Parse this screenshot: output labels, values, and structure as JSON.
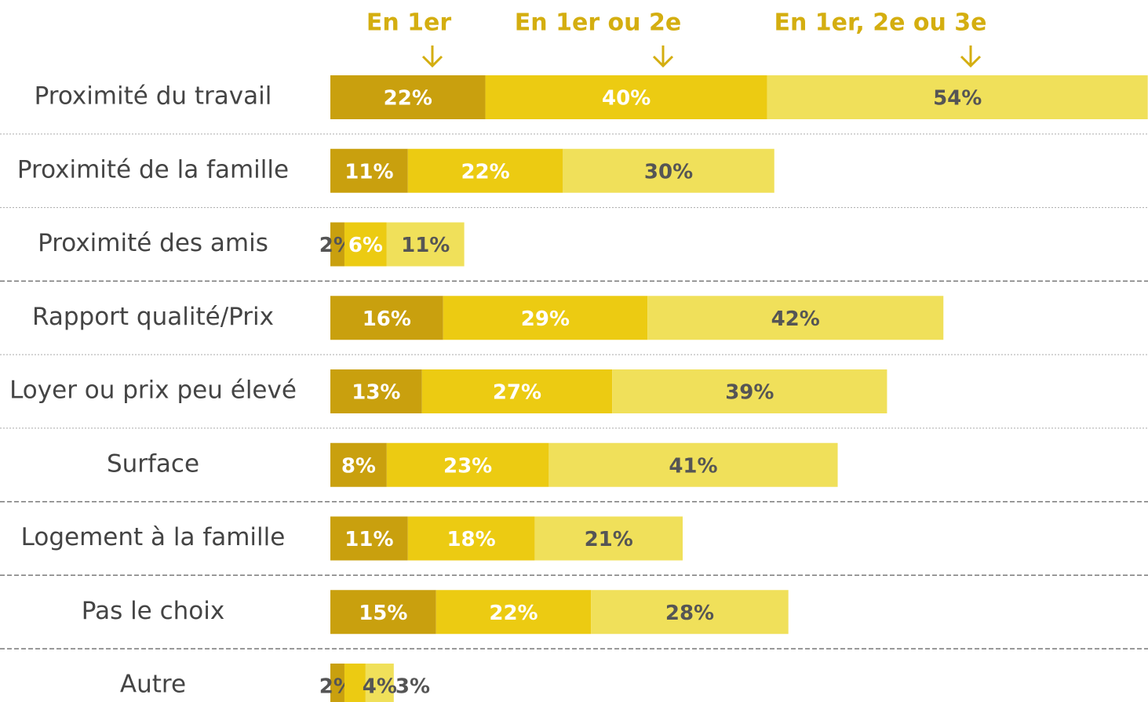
{
  "chart_data": {
    "type": "bar",
    "orientation": "horizontal",
    "stacked": true,
    "categories": [
      "Proximité du travail",
      "Proximité de la famille",
      "Proximité des amis",
      "Rapport qualité/Prix",
      "Loyer ou prix peu élevé",
      "Surface",
      "Logement à la famille",
      "Pas le choix",
      "Autre"
    ],
    "series": [
      {
        "name": "En 1er",
        "color": "#c9a00e",
        "values": [
          22,
          11,
          2,
          16,
          13,
          8,
          11,
          15,
          2
        ],
        "value_labels": [
          "22%",
          "11%",
          "2%",
          "16%",
          "13%",
          "8%",
          "11%",
          "15%",
          "2%"
        ]
      },
      {
        "name": "En 1er ou 2e",
        "color": "#eccb12",
        "values": [
          40,
          22,
          6,
          29,
          27,
          23,
          18,
          22,
          3
        ],
        "value_labels": [
          "40%",
          "22%",
          "6%",
          "29%",
          "27%",
          "23%",
          "18%",
          "22%",
          "3%"
        ]
      },
      {
        "name": "En 1er, 2e ou 3e",
        "color": "#f0e05a",
        "values": [
          54,
          30,
          11,
          42,
          39,
          41,
          21,
          28,
          4
        ],
        "value_labels": [
          "54%",
          "30%",
          "11%",
          "42%",
          "39%",
          "41%",
          "21%",
          "28%",
          "4%"
        ]
      }
    ]
  }
}
